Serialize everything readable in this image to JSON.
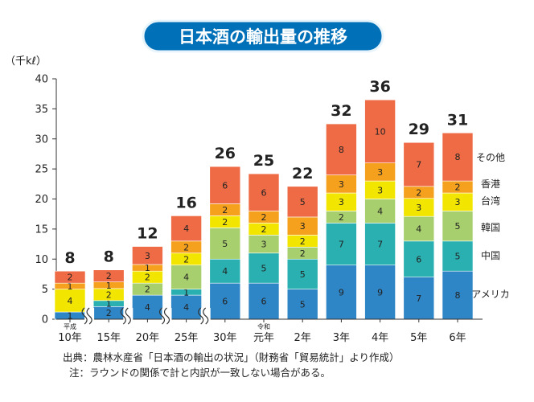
{
  "chart_data": {
    "type": "bar",
    "stacked": true,
    "title": "日本酒の輸出量の推移",
    "unit_label": "（千kℓ）",
    "ylim": [
      0,
      40
    ],
    "yticks": [
      0,
      5,
      10,
      15,
      20,
      25,
      30,
      35,
      40
    ],
    "grid": false,
    "legend": "right",
    "categories": [
      "10年",
      "15年",
      "20年",
      "25年",
      "30年",
      "元年",
      "2年",
      "3年",
      "4年",
      "5年",
      "6年"
    ],
    "era_labels": [
      "平成",
      "",
      "",
      "",
      "",
      "令和",
      "",
      "",
      "",
      "",
      ""
    ],
    "axis_break_after": [
      0,
      1,
      2,
      3
    ],
    "totals": [
      8,
      8,
      12,
      16,
      26,
      25,
      22,
      32,
      36,
      29,
      31
    ],
    "series": [
      {
        "name": "アメリカ",
        "color": "#2f86c6",
        "values": [
          1,
          2,
          4,
          4,
          6,
          6,
          5,
          9,
          9,
          7,
          8
        ]
      },
      {
        "name": "中国",
        "color": "#2ab0b0",
        "values": [
          0,
          1,
          0,
          1,
          4,
          5,
          5,
          7,
          7,
          6,
          5
        ]
      },
      {
        "name": "韓国",
        "color": "#a8cf6e",
        "values": [
          0,
          0,
          2,
          4,
          5,
          3,
          2,
          2,
          4,
          4,
          5
        ]
      },
      {
        "name": "台湾",
        "color": "#f2e600",
        "values": [
          4,
          2,
          2,
          2,
          2,
          2,
          2,
          3,
          3,
          3,
          3
        ]
      },
      {
        "name": "香港",
        "color": "#f5a11d",
        "values": [
          1,
          1,
          1,
          2,
          2,
          2,
          3,
          3,
          3,
          2,
          2
        ]
      },
      {
        "name": "その他",
        "color": "#ee6b45",
        "values": [
          2,
          2,
          3,
          4,
          6,
          6,
          5,
          8,
          10,
          7,
          8
        ]
      }
    ],
    "display_values": [
      [
        "1",
        "2",
        "4",
        "4",
        "6",
        "6",
        "5",
        "9",
        "9",
        "7",
        "8"
      ],
      [
        "",
        "1",
        "",
        "1",
        "4",
        "5",
        "5",
        "7",
        "7",
        "6",
        "5"
      ],
      [
        "",
        "",
        "2",
        "4",
        "5",
        "3",
        "2",
        "2",
        "4",
        "4",
        "5"
      ],
      [
        "4",
        "2",
        "2",
        "2",
        "2",
        "2",
        "2",
        "3",
        "3",
        "3",
        "3"
      ],
      [
        "1",
        "1",
        "1",
        "2",
        "2",
        "2",
        "3",
        "3",
        "3",
        "2",
        "2"
      ],
      [
        "2",
        "2",
        "3",
        "4",
        "6",
        "6",
        "5",
        "8",
        "10",
        "7",
        "8"
      ]
    ],
    "stack_heights": [
      [
        1.2,
        2.1,
        4.0,
        4.0,
        6.0,
        6.0,
        5.0,
        9.0,
        9.0,
        7.0,
        8.0
      ],
      [
        0.0,
        1.0,
        0.0,
        1.0,
        4.0,
        5.0,
        5.0,
        7.0,
        7.0,
        6.0,
        5.0
      ],
      [
        0.0,
        0.0,
        2.0,
        4.0,
        5.2,
        3.0,
        2.0,
        2.0,
        4.0,
        4.1,
        5.0
      ],
      [
        3.8,
        2.0,
        2.0,
        2.0,
        2.0,
        2.0,
        2.0,
        3.0,
        3.0,
        3.0,
        3.0
      ],
      [
        1.0,
        1.1,
        1.1,
        2.0,
        2.0,
        2.0,
        3.0,
        3.0,
        3.0,
        2.0,
        2.0
      ],
      [
        2.0,
        2.0,
        3.0,
        4.2,
        6.2,
        6.2,
        5.1,
        8.5,
        10.5,
        7.3,
        8.0
      ]
    ]
  },
  "notes": {
    "source": "出典：農林水産省「日本酒の輸出の状況」（財務省「貿易統計」より作成）",
    "note": "注：ラウンドの関係で計と内訳が一致しない場合がある。"
  }
}
